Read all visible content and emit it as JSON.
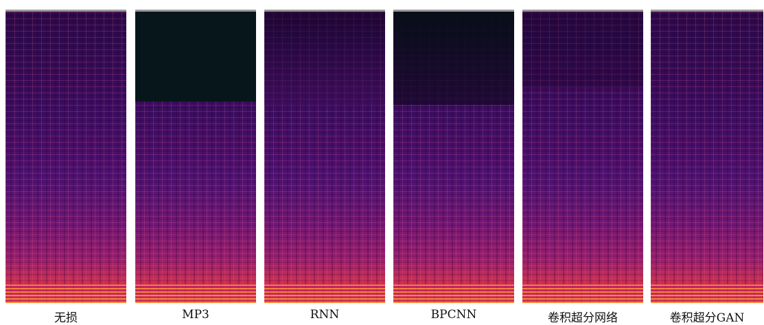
{
  "panels": [
    {
      "label": "无损"
    },
    {
      "label": "MP3"
    },
    {
      "label": "RNN"
    },
    {
      "label": "BPCNN"
    },
    {
      "label": "卷积超分网络"
    },
    {
      "label": "卷积超分GAN"
    }
  ]
}
